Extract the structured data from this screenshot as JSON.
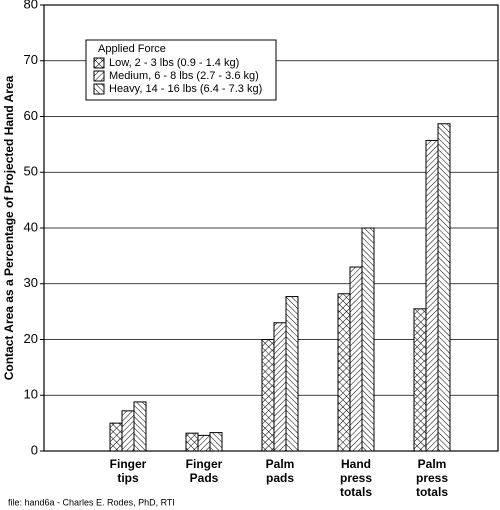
{
  "chart_data": {
    "type": "bar",
    "y_label": "Contact Area as a Percentage of Projected Hand Area",
    "legend_title": "Applied Force",
    "footer": "file:  hand6a - Charles E. Rodes, PhD, RTI",
    "categories": [
      "Finger tips",
      "Finger Pads",
      "Palm pads",
      "Hand press totals",
      "Palm press totals"
    ],
    "series": [
      {
        "name": "Low, 2 - 3 lbs (0.9 - 1.4 kg)",
        "color": "#000000",
        "hatch": "cross",
        "values": [
          5.0,
          3.2,
          20.0,
          28.2,
          25.5
        ]
      },
      {
        "name": "Medium, 6 - 8 lbs (2.7 - 3.6 kg)",
        "color": "#000000",
        "hatch": "forward",
        "values": [
          7.2,
          2.8,
          23.0,
          33.0,
          55.7
        ]
      },
      {
        "name": "Heavy, 14 - 16 lbs (6.4 - 7.3 kg)",
        "color": "#000000",
        "hatch": "back",
        "values": [
          8.8,
          3.3,
          27.7,
          40.0,
          58.7
        ]
      }
    ],
    "ylim": [
      0,
      80
    ],
    "yticks": [
      0,
      10,
      20,
      30,
      40,
      50,
      60,
      70,
      80
    ],
    "grid": true
  }
}
